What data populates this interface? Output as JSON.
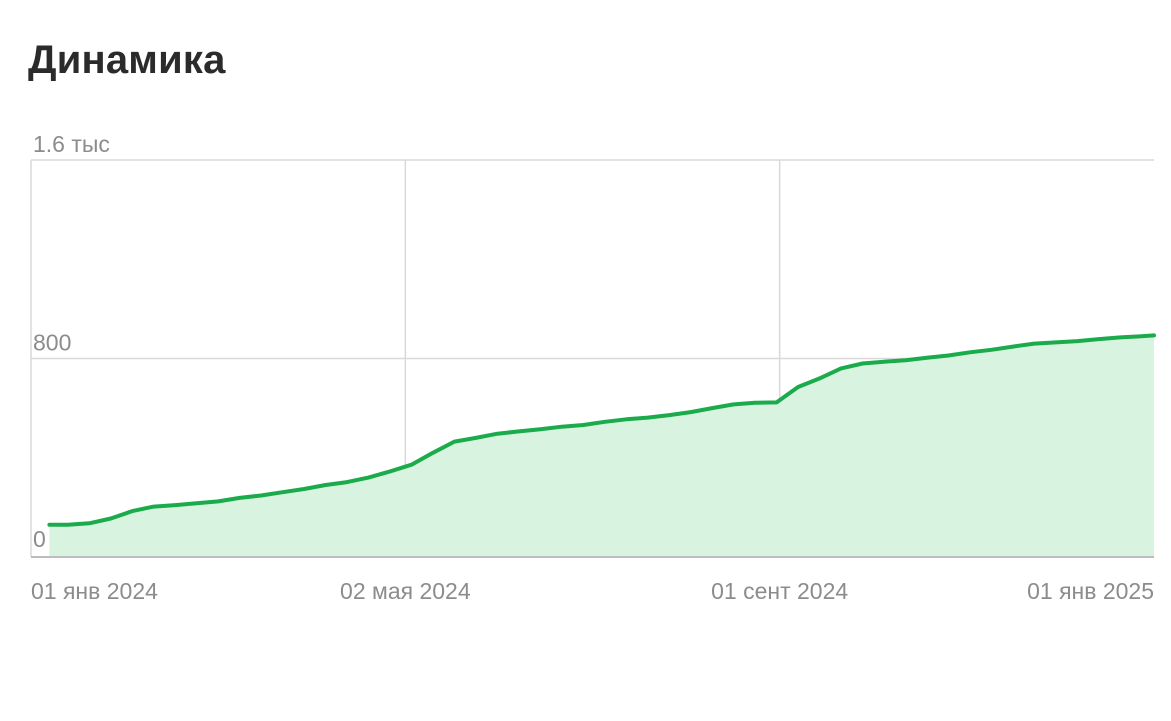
{
  "header": {
    "title": "Динамика"
  },
  "chart_data": {
    "type": "area",
    "title": "Динамика",
    "xlabel": "",
    "ylabel": "",
    "ylim": [
      0,
      1600
    ],
    "y_ticks": [
      {
        "value": 0,
        "label": "0"
      },
      {
        "value": 800,
        "label": "800"
      },
      {
        "value": 1600,
        "label": "1.6 тыс"
      }
    ],
    "x_ticks": [
      {
        "date": "2024-01-01",
        "label": "01 янв 2024"
      },
      {
        "date": "2024-05-02",
        "label": "02 мая 2024"
      },
      {
        "date": "2024-09-01",
        "label": "01 сент 2024"
      },
      {
        "date": "2025-01-01",
        "label": "01 янв 2025"
      }
    ],
    "xlim": [
      "2024-01-01",
      "2025-01-01"
    ],
    "grid": true,
    "legend": "none",
    "colors": {
      "line": "#1aab4b",
      "fill": "#d9f3e1",
      "grid": "#d9d9d9",
      "axis": "#bdbdbd",
      "text": "#8c8c8c"
    },
    "series": [
      {
        "x": [
          "2024-01-07",
          "2024-01-13",
          "2024-01-20",
          "2024-01-27",
          "2024-02-03",
          "2024-02-10",
          "2024-02-17",
          "2024-02-24",
          "2024-03-02",
          "2024-03-09",
          "2024-03-16",
          "2024-03-23",
          "2024-03-30",
          "2024-04-06",
          "2024-04-13",
          "2024-04-20",
          "2024-04-27",
          "2024-05-04",
          "2024-05-11",
          "2024-05-18",
          "2024-05-25",
          "2024-06-01",
          "2024-06-08",
          "2024-06-15",
          "2024-06-22",
          "2024-06-29",
          "2024-07-06",
          "2024-07-13",
          "2024-07-20",
          "2024-07-27",
          "2024-08-03",
          "2024-08-10",
          "2024-08-17",
          "2024-08-24",
          "2024-08-31",
          "2024-09-07",
          "2024-09-14",
          "2024-09-21",
          "2024-09-28",
          "2024-10-05",
          "2024-10-12",
          "2024-10-19",
          "2024-10-26",
          "2024-11-02",
          "2024-11-09",
          "2024-11-16",
          "2024-11-23",
          "2024-11-30",
          "2024-12-07",
          "2024-12-14",
          "2024-12-21",
          "2024-12-28",
          "2025-01-03"
        ],
        "values": [
          130,
          130,
          136,
          155,
          185,
          203,
          209,
          217,
          224,
          238,
          248,
          261,
          274,
          290,
          302,
          320,
          345,
          372,
          420,
          465,
          480,
          497,
          506,
          515,
          525,
          532,
          545,
          555,
          562,
          572,
          584,
          600,
          615,
          622,
          623,
          685,
          720,
          760,
          780,
          787,
          793,
          803,
          812,
          825,
          835,
          848,
          860,
          865,
          870,
          878,
          885,
          890,
          893
        ]
      }
    ]
  }
}
